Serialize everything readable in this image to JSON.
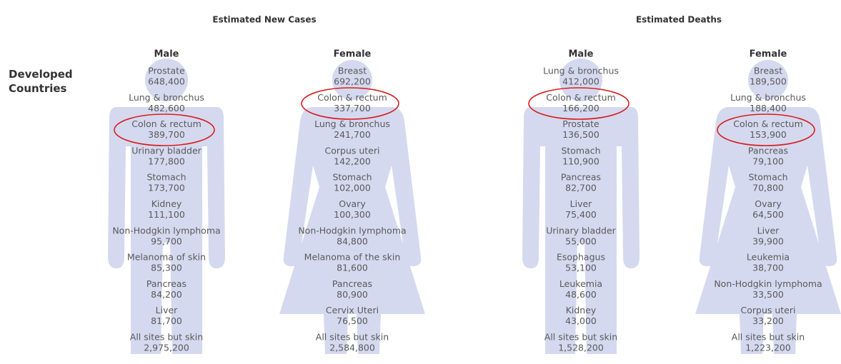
{
  "row_label": "Developed Countries",
  "headings": [
    {
      "title": "Estimated New Cases",
      "groups": [
        {
          "title": "Male",
          "items": [
            {
              "label": "Prostate",
              "value": "648,400"
            },
            {
              "label": "Lung & bronchus",
              "value": "482,600"
            },
            {
              "label": "Colon & rectum",
              "value": "389,700"
            },
            {
              "label": "Urinary bladder",
              "value": "177,800"
            },
            {
              "label": "Stomach",
              "value": "173,700"
            },
            {
              "label": "Kidney",
              "value": "111,100"
            },
            {
              "label": "Non-Hodgkin lymphoma",
              "value": "95,700"
            },
            {
              "label": "Melanoma of skin",
              "value": "85,300"
            },
            {
              "label": "Pancreas",
              "value": "84,200"
            },
            {
              "label": "Liver",
              "value": "81,700"
            },
            {
              "label": "All sites but skin",
              "value": "2,975,200"
            }
          ]
        },
        {
          "title": "Female",
          "items": [
            {
              "label": "Breast",
              "value": "692,200"
            },
            {
              "label": "Colon & rectum",
              "value": "337,700"
            },
            {
              "label": "Lung & bronchus",
              "value": "241,700"
            },
            {
              "label": "Corpus uteri",
              "value": "142,200"
            },
            {
              "label": "Stomach",
              "value": "102,000"
            },
            {
              "label": "Ovary",
              "value": "100,300"
            },
            {
              "label": "Non-Hodgkin lymphoma",
              "value": "84,800"
            },
            {
              "label": "Melanoma of the skin",
              "value": "81,600"
            },
            {
              "label": "Pancreas",
              "value": "80,900"
            },
            {
              "label": "Cervix Uteri",
              "value": "76,500"
            },
            {
              "label": "All sites but skin",
              "value": "2,584,800"
            }
          ]
        }
      ]
    },
    {
      "title": "Estimated Deaths",
      "groups": [
        {
          "title": "Male",
          "items": [
            {
              "label": "Lung & bronchus",
              "value": "412,000"
            },
            {
              "label": "Colon & rectum",
              "value": "166,200"
            },
            {
              "label": "Prostate",
              "value": "136,500"
            },
            {
              "label": "Stomach",
              "value": "110,900"
            },
            {
              "label": "Pancreas",
              "value": "82,700"
            },
            {
              "label": "Liver",
              "value": "75,400"
            },
            {
              "label": "Urinary bladder",
              "value": "55,000"
            },
            {
              "label": "Esophagus",
              "value": "53,100"
            },
            {
              "label": "Leukemia",
              "value": "48,600"
            },
            {
              "label": "Kidney",
              "value": "43,000"
            },
            {
              "label": "All sites but skin",
              "value": "1,528,200"
            }
          ]
        },
        {
          "title": "Female",
          "items": [
            {
              "label": "Breast",
              "value": "189,500"
            },
            {
              "label": "Lung & bronchus",
              "value": "188,400"
            },
            {
              "label": "Colon & rectum",
              "value": "153,900"
            },
            {
              "label": "Pancreas",
              "value": "79,100"
            },
            {
              "label": "Stomach",
              "value": "70,800"
            },
            {
              "label": "Ovary",
              "value": "64,500"
            },
            {
              "label": "Liver",
              "value": "39,900"
            },
            {
              "label": "Leukemia",
              "value": "38,700"
            },
            {
              "label": "Non-Hodgkin lymphoma",
              "value": "33,500"
            },
            {
              "label": "Corpus uteri",
              "value": "33,200"
            },
            {
              "label": "All sites but skin",
              "value": "1,223,200"
            }
          ]
        }
      ]
    }
  ]
}
